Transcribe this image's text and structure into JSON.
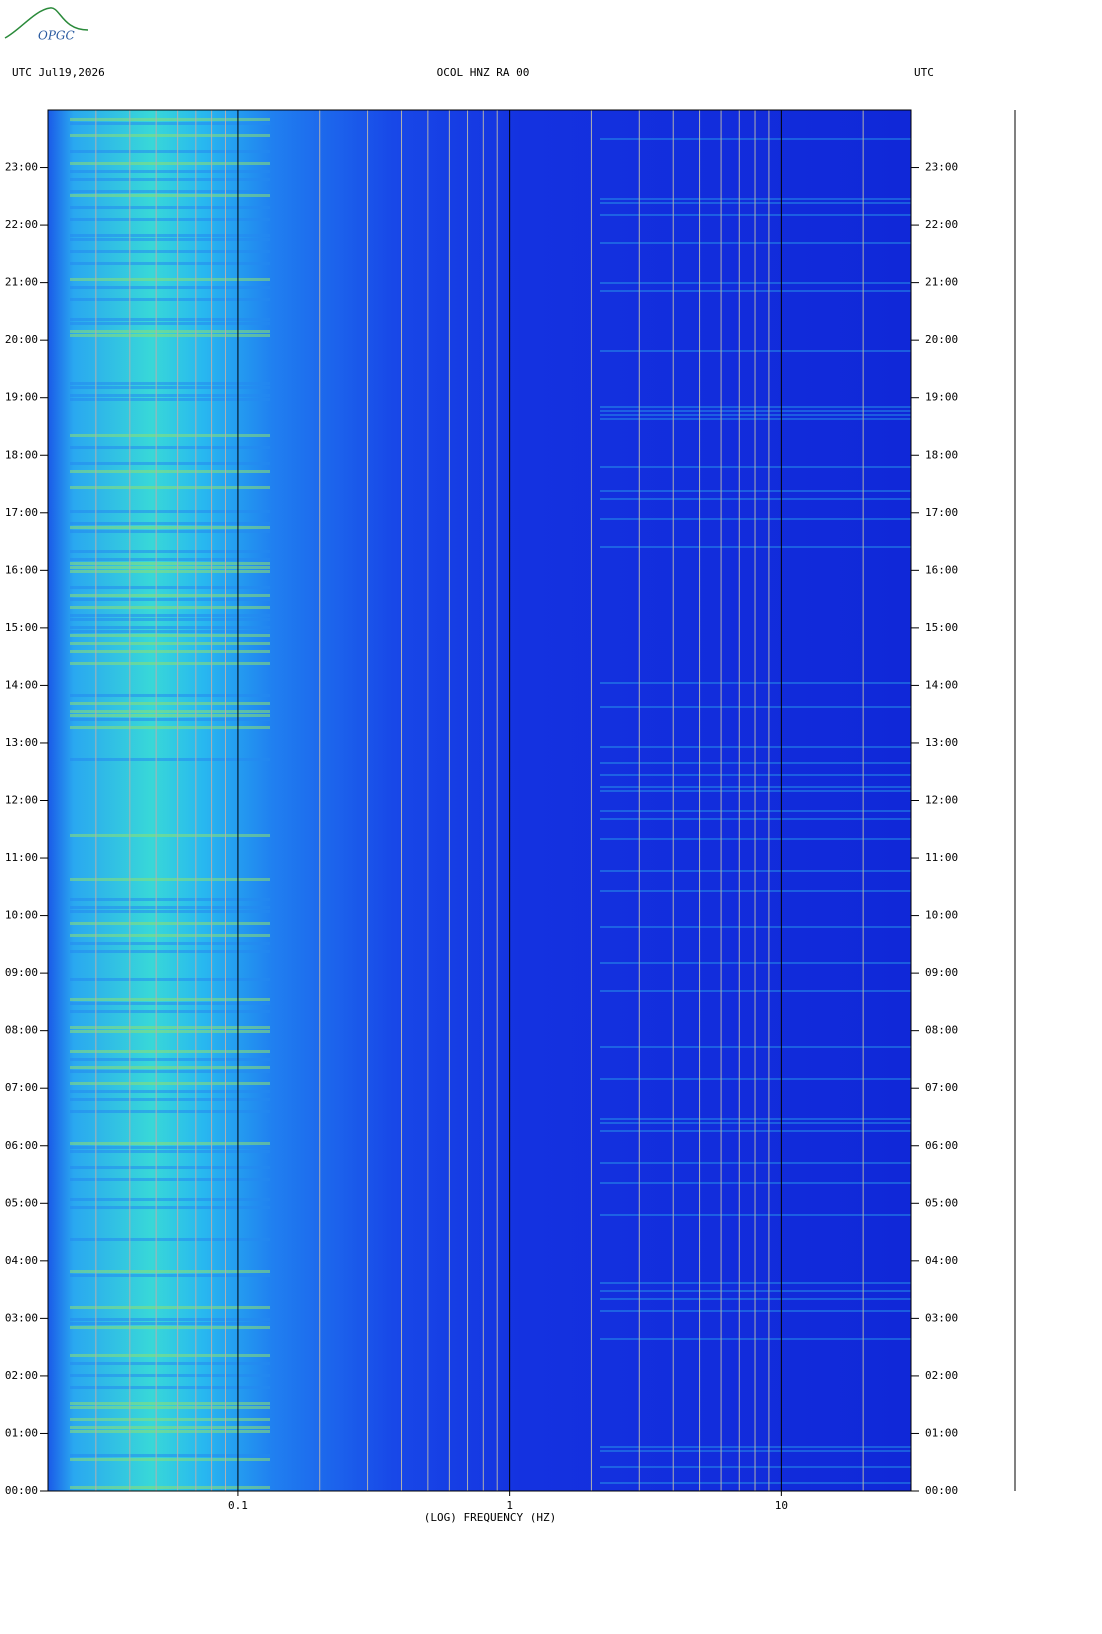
{
  "chart_data": {
    "type": "spectrogram",
    "logo": "OPGC",
    "header_left": "UTC  Jul19,2026",
    "title": "OCOL HNZ RA 00",
    "header_right": "UTC",
    "x_label": "(LOG) FREQUENCY (HZ)",
    "x_log": true,
    "xlim": [
      0.02,
      30
    ],
    "xticks": [
      0.1,
      1,
      10
    ],
    "x_minor_ticks": [
      0.03,
      0.04,
      0.05,
      0.06,
      0.07,
      0.08,
      0.09,
      0.2,
      0.3,
      0.4,
      0.5,
      0.6,
      0.7,
      0.8,
      0.9,
      2,
      3,
      4,
      5,
      6,
      7,
      8,
      9,
      20
    ],
    "ylim": [
      0,
      24
    ],
    "yticks": [
      {
        "value": 0,
        "label": "00:00"
      },
      {
        "value": 1,
        "label": "01:00"
      },
      {
        "value": 2,
        "label": "02:00"
      },
      {
        "value": 3,
        "label": "03:00"
      },
      {
        "value": 4,
        "label": "04:00"
      },
      {
        "value": 5,
        "label": "05:00"
      },
      {
        "value": 6,
        "label": "06:00"
      },
      {
        "value": 7,
        "label": "07:00"
      },
      {
        "value": 8,
        "label": "08:00"
      },
      {
        "value": 9,
        "label": "09:00"
      },
      {
        "value": 10,
        "label": "10:00"
      },
      {
        "value": 11,
        "label": "11:00"
      },
      {
        "value": 12,
        "label": "12:00"
      },
      {
        "value": 13,
        "label": "13:00"
      },
      {
        "value": 14,
        "label": "14:00"
      },
      {
        "value": 15,
        "label": "15:00"
      },
      {
        "value": 16,
        "label": "16:00"
      },
      {
        "value": 17,
        "label": "17:00"
      },
      {
        "value": 18,
        "label": "18:00"
      },
      {
        "value": 19,
        "label": "19:00"
      },
      {
        "value": 20,
        "label": "20:00"
      },
      {
        "value": 21,
        "label": "21:00"
      },
      {
        "value": 22,
        "label": "22:00"
      },
      {
        "value": 23,
        "label": "23:00"
      }
    ]
  }
}
